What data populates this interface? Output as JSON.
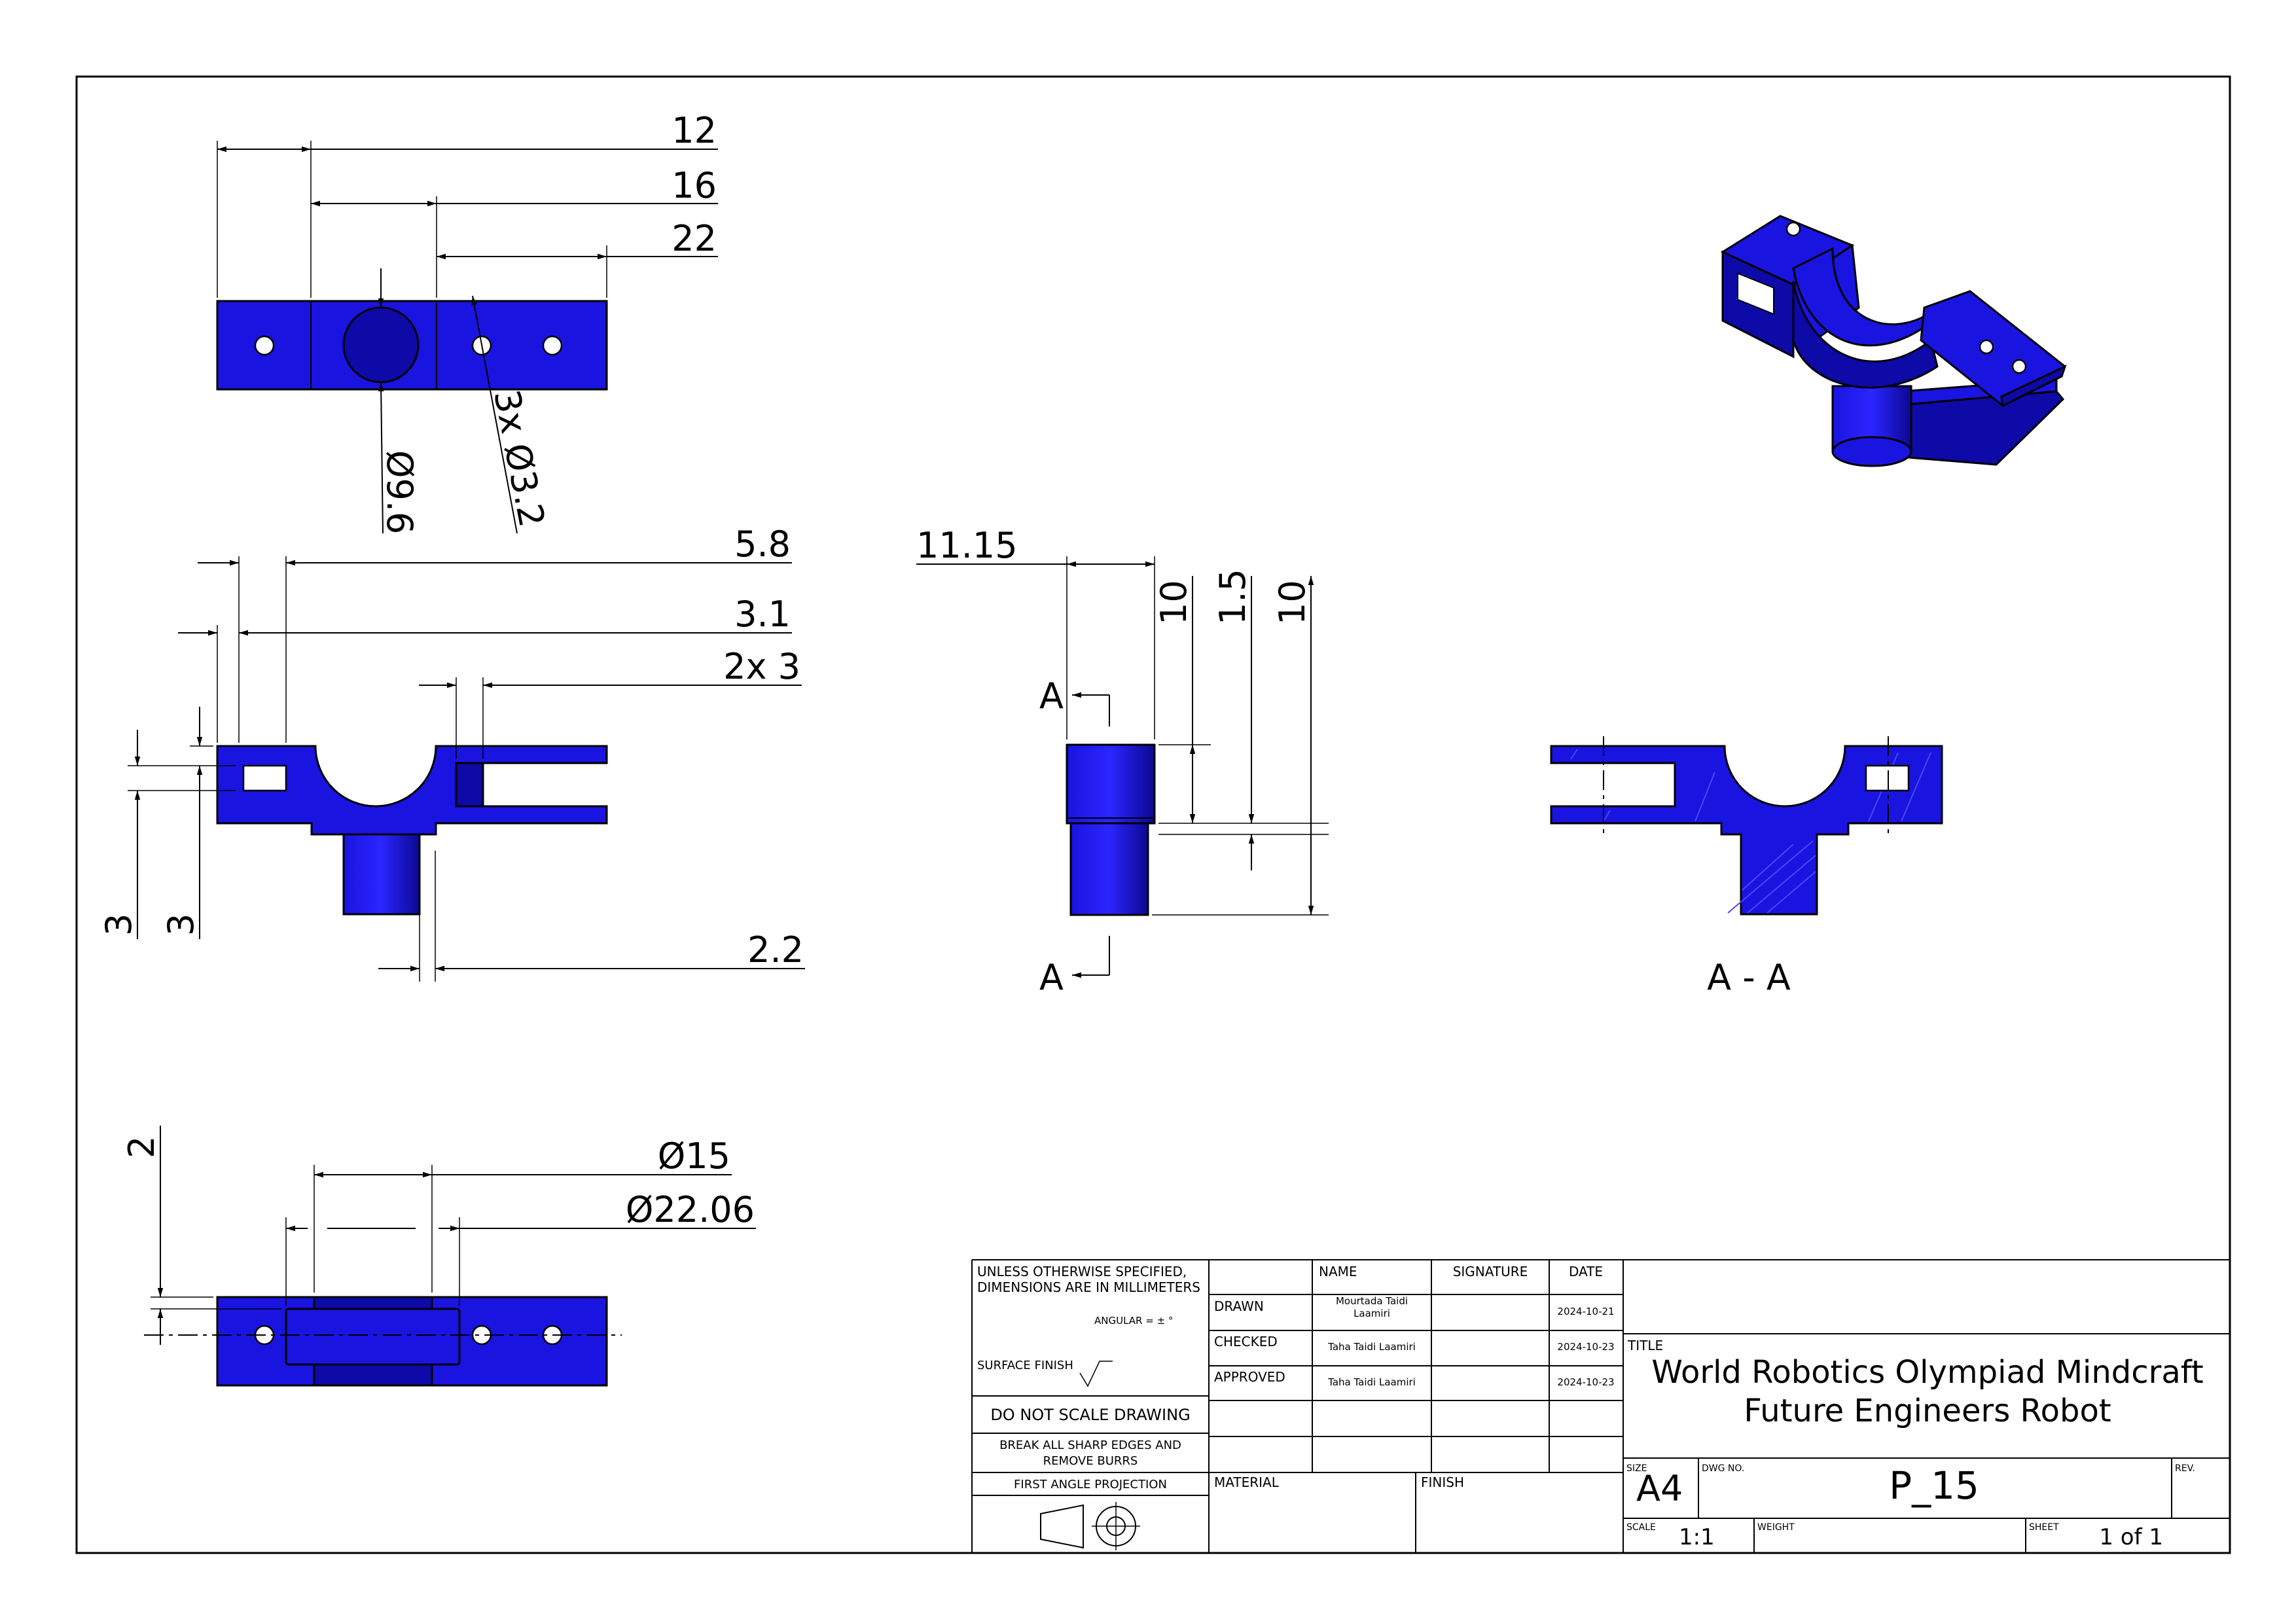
{
  "views": {
    "top": {
      "dims": {
        "d12": "12",
        "d16": "16",
        "d22": "22",
        "hole_big": "Ø9.6",
        "holes_small": "3x Ø3.2"
      }
    },
    "front": {
      "dims": {
        "d58": "5.8",
        "d31": "3.1",
        "d2x3": "2x 3",
        "d22": "2.2",
        "v3a": "3",
        "v3b": "3"
      }
    },
    "side": {
      "dims": {
        "d1115": "11.15",
        "d10a": "10",
        "d15": "1.5",
        "d10b": "10"
      },
      "section_marks": {
        "top": "A",
        "bottom": "A"
      }
    },
    "section": {
      "label": "A - A"
    },
    "bottom": {
      "dims": {
        "d2": "2",
        "d15": "Ø15",
        "d2206": "Ø22.06"
      }
    }
  },
  "title_block": {
    "notes": {
      "line1": "UNLESS OTHERWISE SPECIFIED,",
      "line2": "DIMENSIONS ARE IN MILLIMETERS",
      "angular": "ANGULAR = ± °",
      "surface": "SURFACE FINISH",
      "no_scale": "DO NOT SCALE DRAWING",
      "burrs1": "BREAK ALL SHARP EDGES AND",
      "burrs2": "REMOVE BURRS",
      "projection": "FIRST ANGLE PROJECTION"
    },
    "headers": {
      "name": "NAME",
      "signature": "SIGNATURE",
      "date": "DATE"
    },
    "rows": [
      {
        "role": "DRAWN",
        "name1": "Mourtada Taidi",
        "name2": "Laamiri",
        "date": "2024-10-21"
      },
      {
        "role": "CHECKED",
        "name1": "Taha Taidi Laamiri",
        "name2": "",
        "date": "2024-10-23"
      },
      {
        "role": "APPROVED",
        "name1": "Taha Taidi Laamiri",
        "name2": "",
        "date": "2024-10-23"
      }
    ],
    "material_label": "MATERIAL",
    "finish_label": "FINISH",
    "title_label": "TITLE",
    "title_line1": "World Robotics Olympiad Mindcraft",
    "title_line2": "Future Engineers Robot",
    "size_label": "SIZE",
    "size": "A4",
    "dwg_label": "DWG NO.",
    "dwg_no": "P_15",
    "rev_label": "REV.",
    "scale_label": "SCALE",
    "scale": "1:1",
    "weight_label": "WEIGHT",
    "sheet_label": "SHEET",
    "sheet": "1 of 1"
  }
}
